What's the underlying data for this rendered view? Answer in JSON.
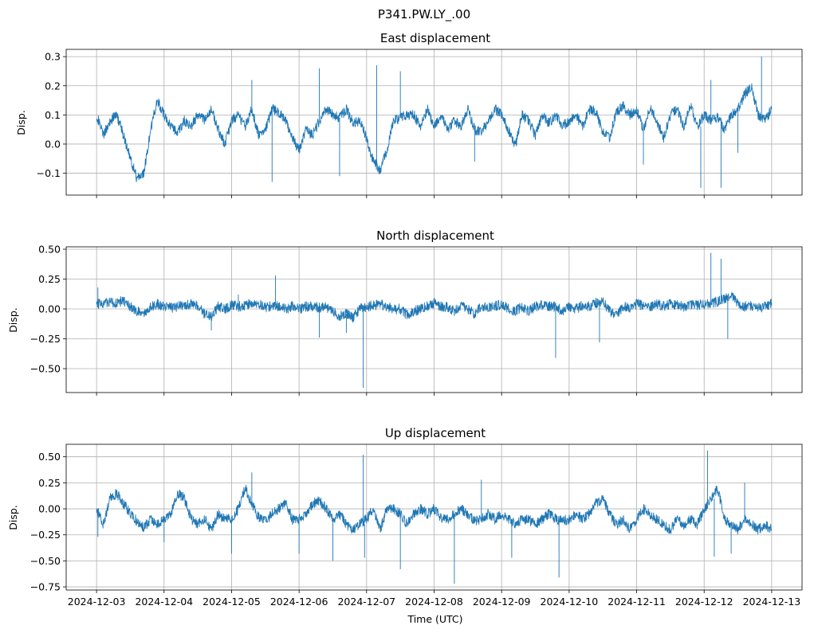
{
  "figure": {
    "suptitle": "P341.PW.LY_.00",
    "xlabel": "Time (UTC)",
    "line_color": "#1f77b4"
  },
  "chart_data": [
    {
      "type": "line",
      "title": "East displacement",
      "ylabel": "Disp.",
      "x_ticks": [
        "2024-12-03",
        "2024-12-04",
        "2024-12-05",
        "2024-12-06",
        "2024-12-07",
        "2024-12-08",
        "2024-12-09",
        "2024-12-10",
        "2024-12-11",
        "2024-12-12",
        "2024-12-13"
      ],
      "y_ticks": [
        "0.3",
        "0.2",
        "0.1",
        "0.0",
        "−0.1"
      ],
      "y_tick_values": [
        0.3,
        0.2,
        0.1,
        0.0,
        -0.1
      ],
      "ylim": [
        -0.175,
        0.325
      ],
      "xlim_days": [
        -0.45,
        10.45
      ],
      "grid": true,
      "x": [
        0,
        0.1,
        0.2,
        0.3,
        0.4,
        0.5,
        0.6,
        0.7,
        0.8,
        0.9,
        1.0,
        1.1,
        1.2,
        1.3,
        1.4,
        1.5,
        1.6,
        1.7,
        1.8,
        1.9,
        2.0,
        2.1,
        2.2,
        2.3,
        2.4,
        2.5,
        2.6,
        2.7,
        2.8,
        2.9,
        3.0,
        3.1,
        3.2,
        3.3,
        3.4,
        3.5,
        3.6,
        3.7,
        3.8,
        3.9,
        4.0,
        4.1,
        4.2,
        4.3,
        4.4,
        4.5,
        4.6,
        4.7,
        4.8,
        4.9,
        5.0,
        5.1,
        5.2,
        5.3,
        5.4,
        5.5,
        5.6,
        5.7,
        5.8,
        5.9,
        6.0,
        6.1,
        6.2,
        6.3,
        6.4,
        6.5,
        6.6,
        6.7,
        6.8,
        6.9,
        7.0,
        7.1,
        7.2,
        7.3,
        7.4,
        7.5,
        7.6,
        7.7,
        7.8,
        7.9,
        8.0,
        8.1,
        8.2,
        8.3,
        8.4,
        8.5,
        8.6,
        8.7,
        8.8,
        8.9,
        9.0,
        9.1,
        9.2,
        9.3,
        9.4,
        9.5,
        9.6,
        9.7,
        9.8,
        9.9,
        10.0
      ],
      "values": [
        0.1,
        0.03,
        0.08,
        0.1,
        0.03,
        -0.05,
        -0.12,
        -0.1,
        0.05,
        0.15,
        0.1,
        0.06,
        0.04,
        0.08,
        0.06,
        0.1,
        0.08,
        0.12,
        0.05,
        0.0,
        0.08,
        0.1,
        0.06,
        0.12,
        0.03,
        0.05,
        0.12,
        0.11,
        0.08,
        0.02,
        -0.02,
        0.05,
        0.03,
        0.08,
        0.12,
        0.1,
        0.09,
        0.12,
        0.07,
        0.08,
        0.02,
        -0.06,
        -0.09,
        -0.02,
        0.08,
        0.09,
        0.1,
        0.1,
        0.06,
        0.12,
        0.06,
        0.1,
        0.05,
        0.08,
        0.06,
        0.12,
        0.05,
        0.04,
        0.08,
        0.12,
        0.1,
        0.05,
        -0.01,
        0.1,
        0.08,
        0.03,
        0.1,
        0.07,
        0.1,
        0.06,
        0.08,
        0.1,
        0.06,
        0.12,
        0.11,
        0.04,
        0.02,
        0.11,
        0.13,
        0.1,
        0.12,
        0.05,
        0.13,
        0.08,
        0.02,
        0.1,
        0.12,
        0.06,
        0.13,
        0.06,
        0.1,
        0.08,
        0.09,
        0.05,
        0.1,
        0.12,
        0.17,
        0.2,
        0.1,
        0.08,
        0.12
      ],
      "spikes": [
        [
          2.3,
          0.22
        ],
        [
          2.6,
          -0.13
        ],
        [
          3.3,
          0.26
        ],
        [
          3.6,
          -0.11
        ],
        [
          4.15,
          0.27
        ],
        [
          4.5,
          0.25
        ],
        [
          5.6,
          -0.06
        ],
        [
          8.1,
          -0.07
        ],
        [
          8.95,
          -0.15
        ],
        [
          9.1,
          0.22
        ],
        [
          9.25,
          -0.15
        ],
        [
          9.5,
          -0.03
        ],
        [
          9.85,
          0.3
        ]
      ]
    },
    {
      "type": "line",
      "title": "North displacement",
      "ylabel": "Disp.",
      "x_ticks": [
        "2024-12-03",
        "2024-12-04",
        "2024-12-05",
        "2024-12-06",
        "2024-12-07",
        "2024-12-08",
        "2024-12-09",
        "2024-12-10",
        "2024-12-11",
        "2024-12-12",
        "2024-12-13"
      ],
      "y_ticks": [
        "0.50",
        "0.25",
        "0.00",
        "−0.25",
        "−0.50"
      ],
      "y_tick_values": [
        0.5,
        0.25,
        0.0,
        -0.25,
        -0.5
      ],
      "ylim": [
        -0.7,
        0.52
      ],
      "xlim_days": [
        -0.45,
        10.45
      ],
      "grid": true,
      "x": [
        0,
        0.1,
        0.2,
        0.3,
        0.4,
        0.5,
        0.6,
        0.7,
        0.8,
        0.9,
        1.0,
        1.1,
        1.2,
        1.3,
        1.4,
        1.5,
        1.6,
        1.7,
        1.8,
        1.9,
        2.0,
        2.1,
        2.2,
        2.3,
        2.4,
        2.5,
        2.6,
        2.7,
        2.8,
        2.9,
        3.0,
        3.1,
        3.2,
        3.3,
        3.4,
        3.5,
        3.6,
        3.7,
        3.8,
        3.9,
        4.0,
        4.1,
        4.2,
        4.3,
        4.4,
        4.5,
        4.6,
        4.7,
        4.8,
        4.9,
        5.0,
        5.1,
        5.2,
        5.3,
        5.4,
        5.5,
        5.6,
        5.7,
        5.8,
        5.9,
        6.0,
        6.1,
        6.2,
        6.3,
        6.4,
        6.5,
        6.6,
        6.7,
        6.8,
        6.9,
        7.0,
        7.1,
        7.2,
        7.3,
        7.4,
        7.5,
        7.6,
        7.7,
        7.8,
        7.9,
        8.0,
        8.1,
        8.2,
        8.3,
        8.4,
        8.5,
        8.6,
        8.7,
        8.8,
        8.9,
        9.0,
        9.1,
        9.2,
        9.3,
        9.4,
        9.5,
        9.6,
        9.7,
        9.8,
        9.9,
        10.0
      ],
      "values": [
        0.04,
        0.05,
        0.06,
        0.05,
        0.07,
        0.02,
        -0.02,
        -0.03,
        0.02,
        0.04,
        0.02,
        0.01,
        0.02,
        0.03,
        0.04,
        0.02,
        -0.04,
        -0.06,
        0.02,
        0.0,
        0.03,
        0.02,
        0.03,
        0.05,
        0.04,
        0.01,
        0.03,
        0.02,
        0.0,
        0.02,
        0.0,
        0.02,
        0.02,
        0.01,
        0.02,
        -0.02,
        -0.06,
        -0.04,
        -0.08,
        0.0,
        0.02,
        0.03,
        0.04,
        0.02,
        0.0,
        0.0,
        -0.05,
        -0.02,
        0.0,
        0.02,
        0.05,
        0.02,
        0.02,
        -0.02,
        0.02,
        0.0,
        -0.04,
        0.02,
        0.01,
        0.02,
        0.04,
        0.0,
        -0.02,
        0.02,
        -0.02,
        0.02,
        0.03,
        0.02,
        0.02,
        -0.02,
        0.02,
        0.0,
        0.03,
        0.02,
        0.05,
        0.06,
        -0.02,
        -0.05,
        0.02,
        0.0,
        0.04,
        0.03,
        0.02,
        0.04,
        0.02,
        0.04,
        0.03,
        0.02,
        0.04,
        0.03,
        0.04,
        0.05,
        0.06,
        0.08,
        0.12,
        0.04,
        0.02,
        0.03,
        0.01,
        0.02,
        0.05
      ],
      "spikes": [
        [
          0.02,
          0.18
        ],
        [
          1.7,
          -0.18
        ],
        [
          2.1,
          0.12
        ],
        [
          2.65,
          0.28
        ],
        [
          3.3,
          -0.24
        ],
        [
          3.7,
          -0.2
        ],
        [
          3.95,
          -0.66
        ],
        [
          6.8,
          -0.41
        ],
        [
          7.45,
          -0.28
        ],
        [
          9.1,
          0.47
        ],
        [
          9.25,
          0.42
        ],
        [
          9.35,
          -0.25
        ]
      ]
    },
    {
      "type": "line",
      "title": "Up displacement",
      "ylabel": "Disp.",
      "x_ticks": [
        "2024-12-03",
        "2024-12-04",
        "2024-12-05",
        "2024-12-06",
        "2024-12-07",
        "2024-12-08",
        "2024-12-09",
        "2024-12-10",
        "2024-12-11",
        "2024-12-12",
        "2024-12-13"
      ],
      "y_ticks": [
        "0.50",
        "0.25",
        "0.00",
        "−0.25",
        "−0.50",
        "−0.75"
      ],
      "y_tick_values": [
        0.5,
        0.25,
        0.0,
        -0.25,
        -0.5,
        -0.75
      ],
      "ylim": [
        -0.78,
        0.62
      ],
      "xlim_days": [
        -0.45,
        10.45
      ],
      "grid": true,
      "x": [
        0,
        0.1,
        0.2,
        0.3,
        0.4,
        0.5,
        0.6,
        0.7,
        0.8,
        0.9,
        1.0,
        1.1,
        1.2,
        1.3,
        1.4,
        1.5,
        1.6,
        1.7,
        1.8,
        1.9,
        2.0,
        2.1,
        2.2,
        2.3,
        2.4,
        2.5,
        2.6,
        2.7,
        2.8,
        2.9,
        3.0,
        3.1,
        3.2,
        3.3,
        3.4,
        3.5,
        3.6,
        3.7,
        3.8,
        3.9,
        4.0,
        4.1,
        4.2,
        4.3,
        4.4,
        4.5,
        4.6,
        4.7,
        4.8,
        4.9,
        5.0,
        5.1,
        5.2,
        5.3,
        5.4,
        5.5,
        5.6,
        5.7,
        5.8,
        5.9,
        6.0,
        6.1,
        6.2,
        6.3,
        6.4,
        6.5,
        6.6,
        6.7,
        6.8,
        6.9,
        7.0,
        7.1,
        7.2,
        7.3,
        7.4,
        7.5,
        7.6,
        7.7,
        7.8,
        7.9,
        8.0,
        8.1,
        8.2,
        8.3,
        8.4,
        8.5,
        8.6,
        8.7,
        8.8,
        8.9,
        9.0,
        9.1,
        9.2,
        9.3,
        9.4,
        9.5,
        9.6,
        9.7,
        9.8,
        9.9,
        10.0
      ],
      "values": [
        0.0,
        -0.15,
        0.1,
        0.15,
        0.05,
        -0.05,
        -0.12,
        -0.18,
        -0.1,
        -0.15,
        -0.1,
        -0.05,
        0.15,
        0.1,
        -0.1,
        -0.15,
        -0.1,
        -0.2,
        -0.05,
        -0.1,
        -0.1,
        0.0,
        0.2,
        0.05,
        -0.08,
        -0.12,
        -0.05,
        0.0,
        0.05,
        -0.1,
        -0.1,
        -0.05,
        0.05,
        0.08,
        0.0,
        -0.1,
        -0.05,
        -0.15,
        -0.2,
        -0.15,
        -0.1,
        0.0,
        -0.2,
        0.0,
        0.0,
        -0.05,
        -0.15,
        -0.05,
        0.0,
        -0.05,
        0.0,
        -0.08,
        -0.1,
        -0.05,
        0.0,
        -0.05,
        -0.12,
        -0.1,
        -0.05,
        -0.1,
        -0.05,
        -0.1,
        -0.15,
        -0.1,
        -0.1,
        -0.15,
        -0.1,
        -0.05,
        -0.1,
        -0.12,
        -0.1,
        -0.05,
        -0.1,
        -0.05,
        0.05,
        0.1,
        -0.05,
        -0.15,
        -0.1,
        -0.2,
        -0.1,
        0.0,
        -0.05,
        -0.1,
        -0.15,
        -0.2,
        -0.1,
        -0.15,
        -0.1,
        -0.15,
        0.0,
        0.1,
        0.2,
        -0.1,
        -0.15,
        -0.2,
        -0.1,
        -0.15,
        -0.2,
        -0.15,
        -0.2
      ],
      "spikes": [
        [
          0.02,
          -0.27
        ],
        [
          1.0,
          -0.32
        ],
        [
          2.0,
          -0.43
        ],
        [
          2.3,
          0.35
        ],
        [
          3.0,
          -0.43
        ],
        [
          3.5,
          -0.5
        ],
        [
          3.95,
          0.52
        ],
        [
          3.97,
          -0.47
        ],
        [
          4.5,
          -0.58
        ],
        [
          5.3,
          -0.72
        ],
        [
          5.7,
          0.28
        ],
        [
          6.15,
          -0.47
        ],
        [
          6.85,
          -0.66
        ],
        [
          9.05,
          0.56
        ],
        [
          9.15,
          -0.46
        ],
        [
          9.4,
          -0.43
        ],
        [
          9.6,
          0.25
        ]
      ]
    }
  ]
}
